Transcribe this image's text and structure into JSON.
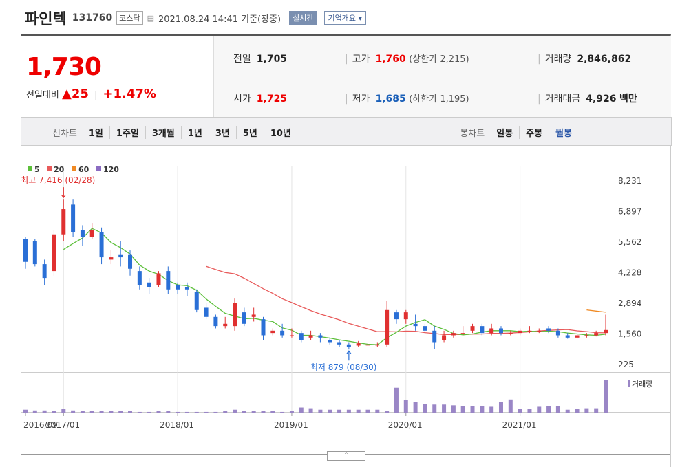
{
  "header": {
    "name": "파인텍",
    "code": "131760",
    "market": "코스닥",
    "datetime": "2021.08.24 14:41 기준(장중)",
    "realtime_label": "실시간",
    "corp_info_label": "기업개요"
  },
  "quote": {
    "price": "1,730",
    "change_label": "전일대비",
    "change_symbol": "▲",
    "change": "25",
    "change_pct": "+1.47%",
    "prev_close_label": "전일",
    "prev_close": "1,705",
    "high_label": "고가",
    "high": "1,760",
    "upper_limit": "(상한가 2,215)",
    "volume_label": "거래량",
    "volume": "2,846,862",
    "open_label": "시가",
    "open": "1,725",
    "low_label": "저가",
    "low": "1,685",
    "lower_limit": "(하한가 1,195)",
    "trade_value_label": "거래대금",
    "trade_value": "4,926",
    "trade_value_unit": "백만"
  },
  "tabs": {
    "line_chart_label": "선차트",
    "periods": [
      "1일",
      "1주일",
      "3개월",
      "1년",
      "3년",
      "5년",
      "10년"
    ],
    "candle_label": "봉차트",
    "candle_periods": [
      "일봉",
      "주봉",
      "월봉"
    ],
    "selected_candle": "월봉"
  },
  "colors": {
    "up": "#e03030",
    "down": "#2a6fd6",
    "ma5": "#5cbf3a",
    "ma20": "#e85a5a",
    "ma60": "#f08a24",
    "ma120": "#8b6cc2",
    "volume": "#9a86c6"
  },
  "chart_data": {
    "type": "candlestick",
    "legend": [
      "5",
      "20",
      "60",
      "120"
    ],
    "y_ticks": [
      "8,231",
      "6,897",
      "5,562",
      "4,228",
      "2,894",
      "1,560",
      "225"
    ],
    "ylim": [
      225,
      8231
    ],
    "x_ticks": [
      "2016/09",
      "2017/01",
      "2018/01",
      "2019/01",
      "2020/01",
      "2021/01"
    ],
    "max_annotation": "최고 7,416 (02/28)",
    "min_annotation": "최저 879 (08/30)",
    "volume_label": "거래량",
    "candles": [
      {
        "o": 5700,
        "c": 4700,
        "h": 5800,
        "l": 4400
      },
      {
        "o": 5600,
        "c": 4600,
        "h": 5700,
        "l": 4500
      },
      {
        "o": 4600,
        "c": 4000,
        "h": 4800,
        "l": 3700
      },
      {
        "o": 4300,
        "c": 5900,
        "h": 6100,
        "l": 4100
      },
      {
        "o": 5900,
        "c": 7000,
        "h": 7416,
        "l": 5600
      },
      {
        "o": 7200,
        "c": 6000,
        "h": 7416,
        "l": 5800
      },
      {
        "o": 6100,
        "c": 5800,
        "h": 6300,
        "l": 5400
      },
      {
        "o": 5800,
        "c": 6100,
        "h": 6400,
        "l": 5700
      },
      {
        "o": 6000,
        "c": 4900,
        "h": 6200,
        "l": 4600
      },
      {
        "o": 4800,
        "c": 4900,
        "h": 5200,
        "l": 4600
      },
      {
        "o": 5000,
        "c": 4900,
        "h": 5600,
        "l": 4500
      },
      {
        "o": 5000,
        "c": 4400,
        "h": 5200,
        "l": 4100
      },
      {
        "o": 4300,
        "c": 3700,
        "h": 4500,
        "l": 3500
      },
      {
        "o": 3800,
        "c": 3600,
        "h": 4000,
        "l": 3300
      },
      {
        "o": 3700,
        "c": 4200,
        "h": 4300,
        "l": 3600
      },
      {
        "o": 4300,
        "c": 3500,
        "h": 4500,
        "l": 3300
      },
      {
        "o": 3700,
        "c": 3500,
        "h": 3800,
        "l": 3300
      },
      {
        "o": 3600,
        "c": 3500,
        "h": 3800,
        "l": 3200
      },
      {
        "o": 3400,
        "c": 2600,
        "h": 3500,
        "l": 2500
      },
      {
        "o": 2700,
        "c": 2300,
        "h": 2900,
        "l": 2200
      },
      {
        "o": 2300,
        "c": 1900,
        "h": 2400,
        "l": 1800
      },
      {
        "o": 1900,
        "c": 2000,
        "h": 2300,
        "l": 1800
      },
      {
        "o": 1900,
        "c": 2900,
        "h": 3100,
        "l": 1700
      },
      {
        "o": 2500,
        "c": 2000,
        "h": 2700,
        "l": 1900
      },
      {
        "o": 2300,
        "c": 2400,
        "h": 2700,
        "l": 2100
      },
      {
        "o": 2200,
        "c": 1500,
        "h": 2300,
        "l": 1300
      },
      {
        "o": 1600,
        "c": 1700,
        "h": 1800,
        "l": 1500
      },
      {
        "o": 1700,
        "c": 1500,
        "h": 2000,
        "l": 1400
      },
      {
        "o": 1500,
        "c": 1500,
        "h": 1800,
        "l": 1400
      },
      {
        "o": 1600,
        "c": 1300,
        "h": 1700,
        "l": 1200
      },
      {
        "o": 1400,
        "c": 1500,
        "h": 1700,
        "l": 1300
      },
      {
        "o": 1500,
        "c": 1400,
        "h": 1600,
        "l": 1200
      },
      {
        "o": 1300,
        "c": 1200,
        "h": 1400,
        "l": 1100
      },
      {
        "o": 1200,
        "c": 1100,
        "h": 1300,
        "l": 1000
      },
      {
        "o": 1100,
        "c": 1000,
        "h": 1200,
        "l": 879
      },
      {
        "o": 1050,
        "c": 1150,
        "h": 1250,
        "l": 1000
      },
      {
        "o": 1100,
        "c": 1100,
        "h": 1200,
        "l": 1000
      },
      {
        "o": 1100,
        "c": 1100,
        "h": 1200,
        "l": 1000
      },
      {
        "o": 1100,
        "c": 2600,
        "h": 3000,
        "l": 1000
      },
      {
        "o": 2500,
        "c": 2200,
        "h": 2600,
        "l": 2000
      },
      {
        "o": 2200,
        "c": 2500,
        "h": 2600,
        "l": 2000
      },
      {
        "o": 2000,
        "c": 1900,
        "h": 2400,
        "l": 1700
      },
      {
        "o": 1900,
        "c": 1700,
        "h": 2000,
        "l": 1600
      },
      {
        "o": 1700,
        "c": 1200,
        "h": 1900,
        "l": 900
      },
      {
        "o": 1300,
        "c": 1500,
        "h": 1700,
        "l": 1200
      },
      {
        "o": 1500,
        "c": 1600,
        "h": 1700,
        "l": 1400
      },
      {
        "o": 1600,
        "c": 1600,
        "h": 1900,
        "l": 1500
      },
      {
        "o": 1700,
        "c": 1900,
        "h": 2000,
        "l": 1600
      },
      {
        "o": 1900,
        "c": 1600,
        "h": 2000,
        "l": 1500
      },
      {
        "o": 1600,
        "c": 1800,
        "h": 2000,
        "l": 1500
      },
      {
        "o": 1800,
        "c": 1600,
        "h": 1900,
        "l": 1500
      },
      {
        "o": 1600,
        "c": 1600,
        "h": 1700,
        "l": 1500
      },
      {
        "o": 1600,
        "c": 1700,
        "h": 1800,
        "l": 1500
      },
      {
        "o": 1700,
        "c": 1700,
        "h": 1900,
        "l": 1600
      },
      {
        "o": 1700,
        "c": 1700,
        "h": 1800,
        "l": 1600
      },
      {
        "o": 1800,
        "c": 1700,
        "h": 1900,
        "l": 1600
      },
      {
        "o": 1700,
        "c": 1500,
        "h": 1800,
        "l": 1400
      },
      {
        "o": 1500,
        "c": 1400,
        "h": 1600,
        "l": 1350
      },
      {
        "o": 1400,
        "c": 1500,
        "h": 1550,
        "l": 1350
      },
      {
        "o": 1500,
        "c": 1500,
        "h": 1600,
        "l": 1400
      },
      {
        "o": 1500,
        "c": 1600,
        "h": 1700,
        "l": 1450
      },
      {
        "o": 1600,
        "c": 1730,
        "h": 2400,
        "l": 1500
      }
    ],
    "volumes": [
      4,
      3,
      3,
      2,
      5,
      3,
      2,
      2,
      2,
      2,
      2,
      2,
      1,
      1,
      2,
      2,
      1,
      1,
      1,
      1,
      1,
      2,
      4,
      2,
      2,
      2,
      2,
      1,
      2,
      7,
      6,
      4,
      4,
      4,
      4,
      4,
      4,
      4,
      2,
      34,
      17,
      15,
      12,
      11,
      11,
      10,
      9,
      9,
      9,
      8,
      15,
      18,
      5,
      5,
      8,
      9,
      9,
      4,
      5,
      6,
      6,
      45
    ]
  }
}
